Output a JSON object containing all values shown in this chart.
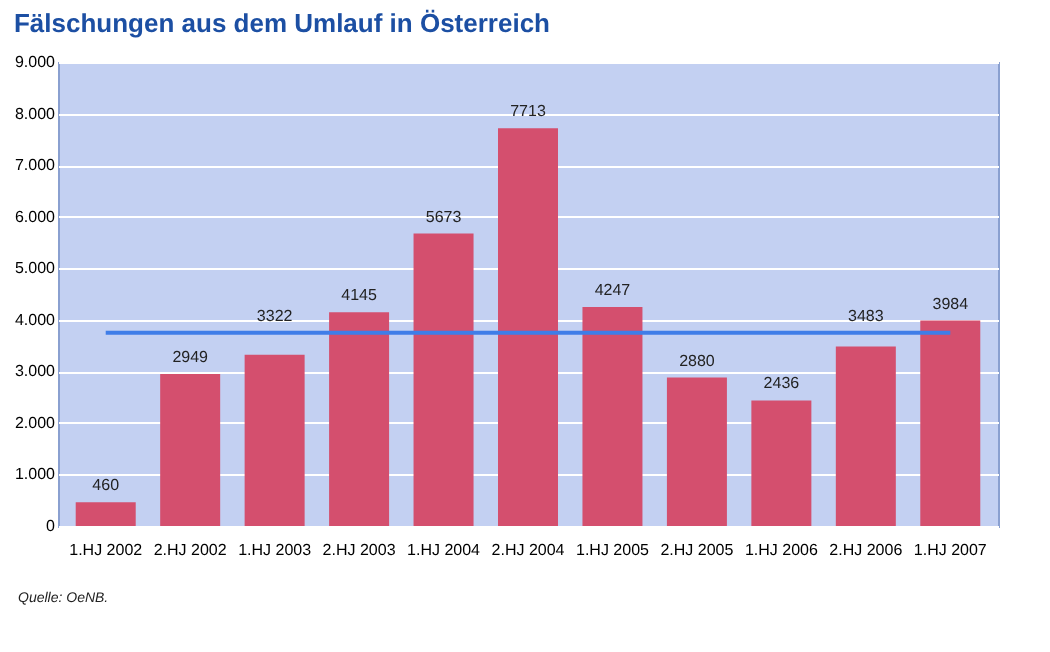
{
  "chart_data": {
    "type": "bar",
    "title": "Fälschungen aus dem Umlauf in Österreich",
    "categories": [
      "1.HJ 2002",
      "2.HJ 2002",
      "1.HJ 2003",
      "2.HJ 2003",
      "1.HJ 2004",
      "2.HJ 2004",
      "1.HJ 2005",
      "2.HJ 2005",
      "1.HJ 2006",
      "2.HJ 2006",
      "1.HJ 2007"
    ],
    "values": [
      460,
      2949,
      3322,
      4145,
      5673,
      7713,
      4247,
      2880,
      2436,
      3483,
      3984
    ],
    "color": "#d44f6e",
    "data_labels": true,
    "ylim": [
      0,
      9000
    ],
    "yticks": [
      {
        "value": 0,
        "label": "0"
      },
      {
        "value": 1000,
        "label": "1.000"
      },
      {
        "value": 2000,
        "label": "2.000"
      },
      {
        "value": 3000,
        "label": "3.000"
      },
      {
        "value": 4000,
        "label": "4.000"
      },
      {
        "value": 5000,
        "label": "5.000"
      },
      {
        "value": 6000,
        "label": "6.000"
      },
      {
        "value": 7000,
        "label": "7.000"
      },
      {
        "value": 8000,
        "label": "8.000"
      },
      {
        "value": 9000,
        "label": "9.000"
      }
    ],
    "grid": "y",
    "ref_lines": [
      {
        "axis": "y",
        "value": 3750,
        "label": null,
        "color": "#3f7de8"
      }
    ],
    "annotations": [
      "Quelle: OeNB."
    ]
  }
}
